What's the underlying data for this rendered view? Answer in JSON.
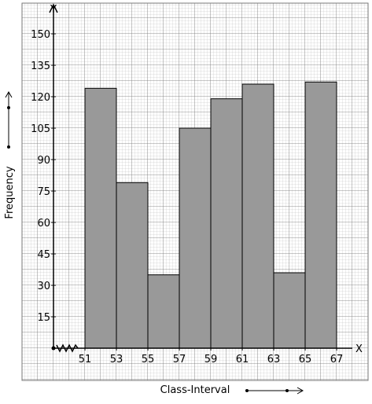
{
  "chart_data": {
    "type": "histogram",
    "x_label": "Class-Interval",
    "y_label": "Frequency",
    "x_axis_name": "X",
    "y_axis_name": "Y",
    "bins": [
      51,
      53,
      55,
      57,
      59,
      61,
      63,
      65,
      67
    ],
    "values": [
      124,
      79,
      35,
      105,
      119,
      126,
      36,
      127
    ],
    "color": "#999999",
    "xlim": [
      49,
      68
    ],
    "ylim": [
      0,
      165
    ],
    "yticks": [
      15,
      30,
      45,
      60,
      75,
      90,
      105,
      120,
      135,
      150
    ]
  }
}
